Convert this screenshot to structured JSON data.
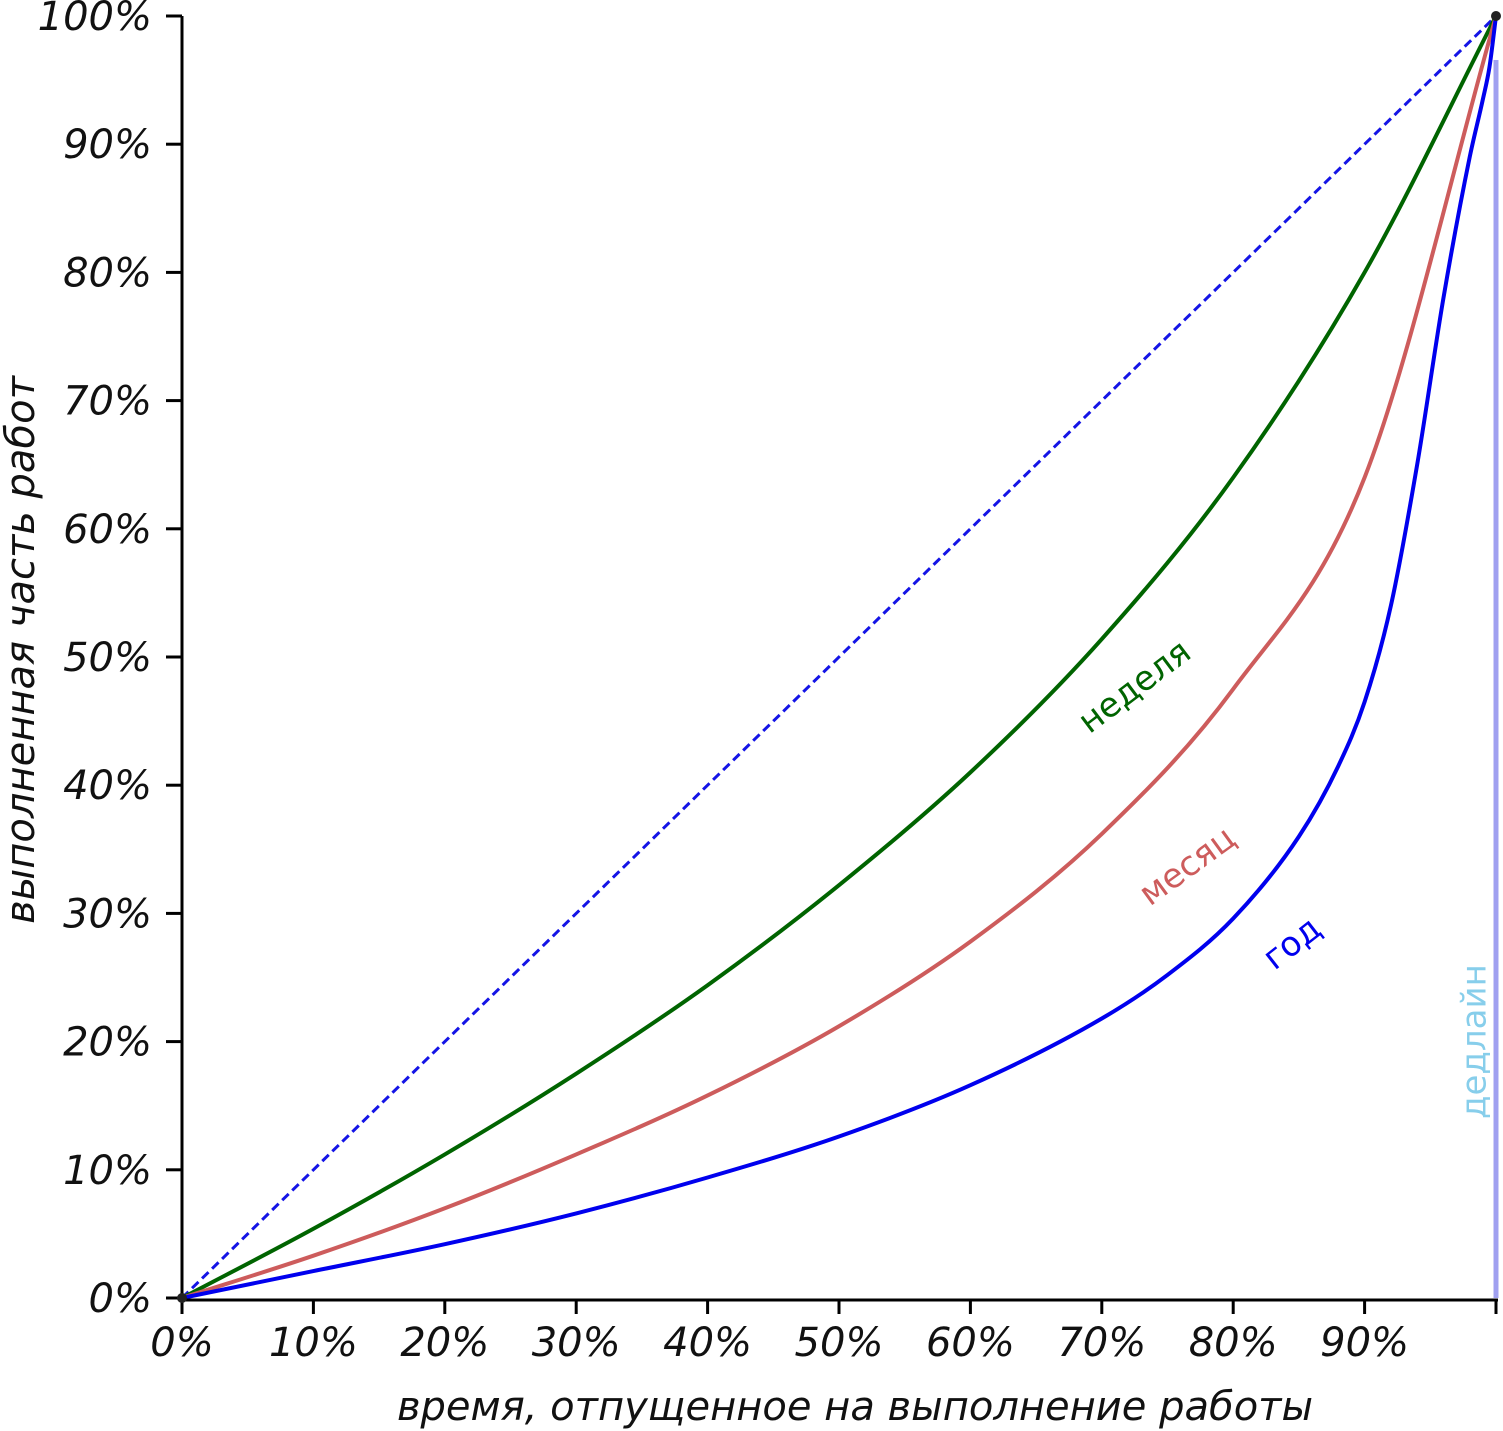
{
  "chart_data": {
    "type": "line",
    "title": "",
    "xlabel": "время, отпущенное на выполнение работы",
    "ylabel": "выполненная часть работ",
    "xlim": [
      0,
      100
    ],
    "ylim": [
      0,
      100
    ],
    "x_ticks": [
      "0%",
      "10%",
      "20%",
      "30%",
      "40%",
      "50%",
      "60%",
      "70%",
      "80%",
      "90%"
    ],
    "x_tick_values": [
      0,
      10,
      20,
      30,
      40,
      50,
      60,
      70,
      80,
      90
    ],
    "y_ticks": [
      "0%",
      "10%",
      "20%",
      "30%",
      "40%",
      "50%",
      "60%",
      "70%",
      "80%",
      "90%",
      "100%"
    ],
    "y_tick_values": [
      0,
      10,
      20,
      30,
      40,
      50,
      60,
      70,
      80,
      90,
      100
    ],
    "grid": false,
    "series": [
      {
        "name": "",
        "style": "dashed",
        "color": "#1414e6",
        "x": [
          0,
          100
        ],
        "y": [
          0,
          100
        ]
      },
      {
        "name": "неделя",
        "style": "solid",
        "color": "#006400",
        "x": [
          0,
          10,
          20,
          30,
          40,
          50,
          60,
          70,
          80,
          90,
          100
        ],
        "y": [
          0,
          5.4,
          11.2,
          17.5,
          24.4,
          32.2,
          41.0,
          51.4,
          64.0,
          80.0,
          100
        ]
      },
      {
        "name": "месяц",
        "style": "solid",
        "color": "#cd5c5c",
        "x": [
          0,
          10,
          20,
          30,
          40,
          50,
          60,
          70,
          80,
          90,
          100
        ],
        "y": [
          0,
          3.3,
          7.0,
          11.2,
          15.8,
          21.2,
          27.8,
          36.2,
          47.5,
          64.0,
          100
        ]
      },
      {
        "name": "год",
        "style": "solid",
        "color": "#0000ee",
        "x": [
          0,
          10,
          20,
          30,
          40,
          50,
          60,
          70,
          75,
          80,
          85,
          88,
          90,
          92,
          94,
          96,
          98,
          99,
          99.5,
          100
        ],
        "y": [
          0,
          2.1,
          4.2,
          6.6,
          9.4,
          12.6,
          16.6,
          21.8,
          25.2,
          29.6,
          36.0,
          41.5,
          46.5,
          54.0,
          65.0,
          78.0,
          89.0,
          93.5,
          96.0,
          100
        ]
      }
    ],
    "annotations": [
      {
        "text": "неделя",
        "color": "#006400",
        "x": 73,
        "y": 47,
        "angle": -37
      },
      {
        "text": "месяц",
        "color": "#cd5c5c",
        "x": 77,
        "y": 33,
        "angle": -36
      },
      {
        "text": "год",
        "color": "#0000ee",
        "x": 85,
        "y": 27,
        "angle": -38
      },
      {
        "text": "дедлайн",
        "color": "#87ceeb",
        "x": 99.2,
        "y": 20,
        "angle": -90
      }
    ],
    "deadline": {
      "x": 100,
      "color": "#a0a0f0"
    }
  }
}
